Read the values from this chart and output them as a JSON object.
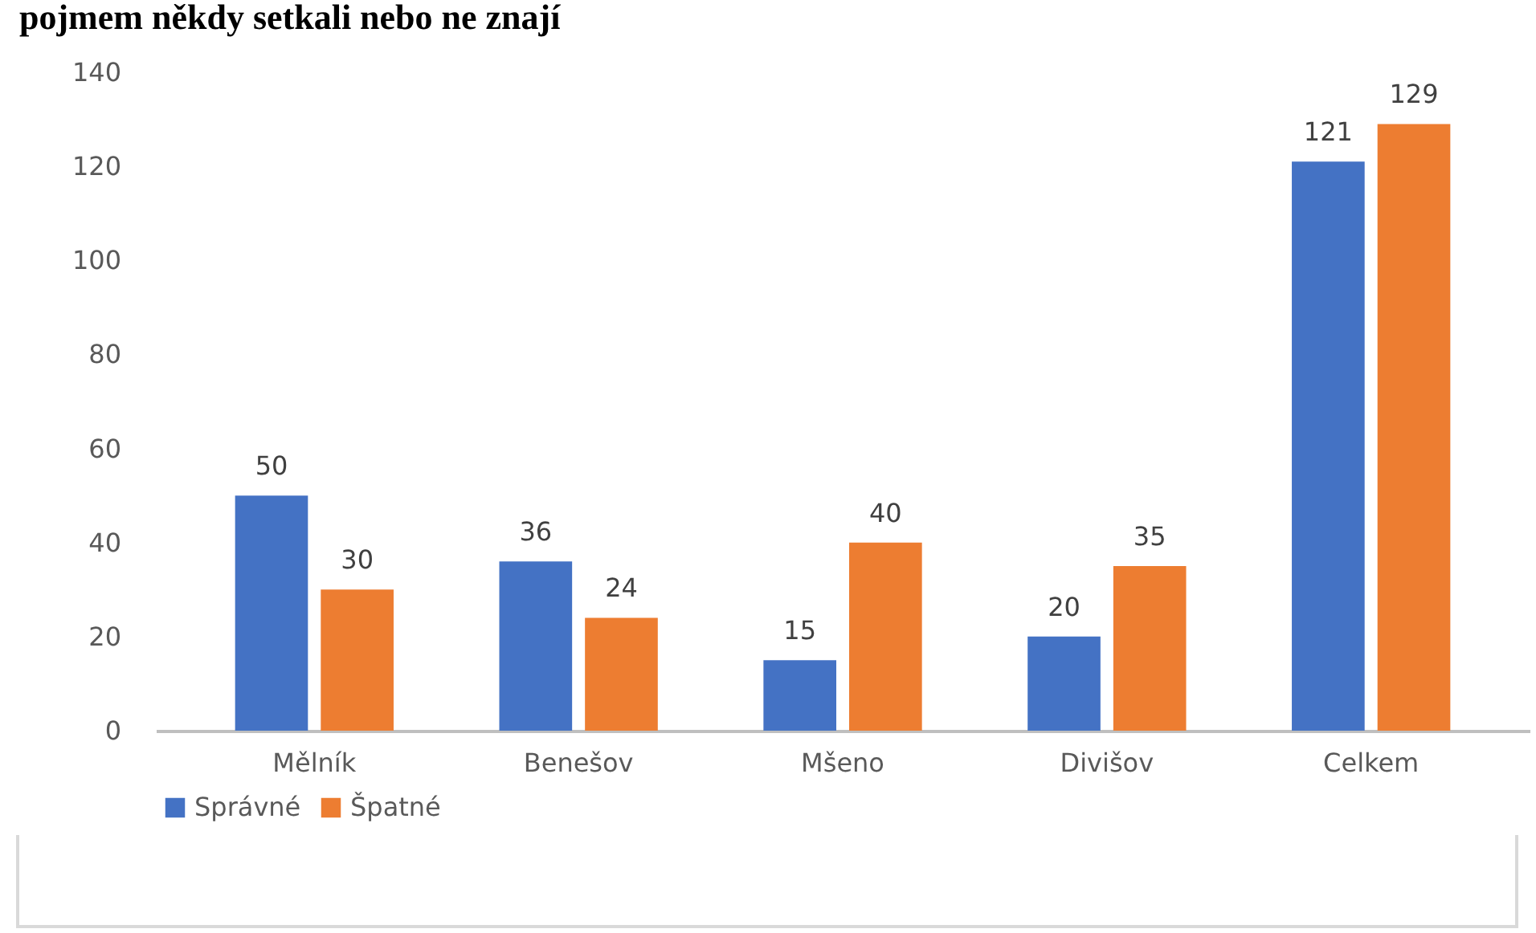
{
  "chart_data": {
    "type": "bar",
    "title": "pojmem někdy setkali nebo ne znají",
    "categories": [
      "Mělník",
      "Benešov",
      "Mšeno",
      "Divišov",
      "Celkem"
    ],
    "series": [
      {
        "name": "Správné",
        "color": "#4472c4",
        "values": [
          50,
          36,
          15,
          20,
          121
        ]
      },
      {
        "name": "Špatné",
        "color": "#ed7d31",
        "values": [
          30,
          24,
          40,
          35,
          129
        ]
      }
    ],
    "ylim": [
      0,
      140
    ],
    "yticks": [
      0,
      20,
      40,
      60,
      80,
      100,
      120,
      140
    ],
    "grid": false,
    "legend": "bottom",
    "data_labels": true
  }
}
